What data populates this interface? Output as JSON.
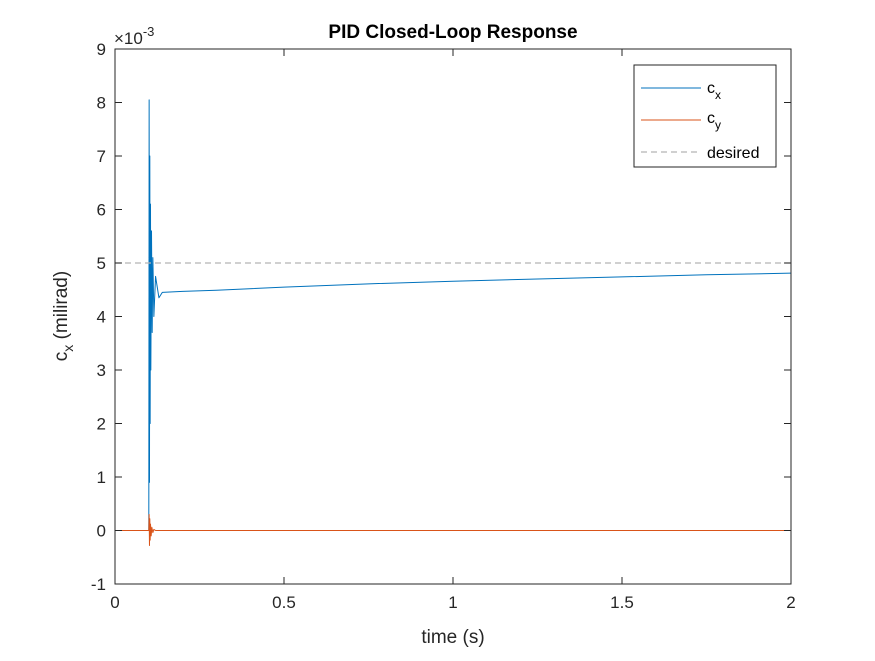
{
  "chart_data": {
    "type": "line",
    "title": "PID Closed-Loop Response",
    "xlabel": "time (s)",
    "ylabel": {
      "base": "c",
      "sub": "x",
      "rest": " (milirad)"
    },
    "xlim": [
      0,
      2
    ],
    "ylim": [
      -1,
      9
    ],
    "y_exponent": {
      "base": "×10",
      "exp": "-3"
    },
    "xticks": [
      0,
      0.5,
      1,
      1.5,
      2
    ],
    "xtick_labels": [
      "0",
      "0.5",
      "1",
      "1.5",
      "2"
    ],
    "yticks": [
      -1,
      0,
      1,
      2,
      3,
      4,
      5,
      6,
      7,
      8,
      9
    ],
    "ytick_labels": [
      "-1",
      "0",
      "1",
      "2",
      "3",
      "4",
      "5",
      "6",
      "7",
      "8",
      "9"
    ],
    "grid": false,
    "legend_position": "top-right",
    "series": [
      {
        "name": "c_x",
        "legend": {
          "base": "c",
          "sub": "x"
        },
        "color": "#0072BD",
        "style": "solid",
        "x": [
          0,
          0.1,
          0.1,
          0.101,
          0.102,
          0.103,
          0.104,
          0.105,
          0.106,
          0.108,
          0.11,
          0.112,
          0.115,
          0.12,
          0.13,
          0.14,
          0.2,
          0.3,
          0.5,
          0.75,
          1.0,
          1.25,
          1.5,
          1.75,
          2.0
        ],
        "y": [
          0,
          0,
          0,
          8.05,
          0.9,
          7.0,
          2.0,
          6.1,
          3.0,
          5.6,
          3.7,
          5.1,
          4.0,
          4.75,
          4.35,
          4.45,
          4.47,
          4.49,
          4.55,
          4.61,
          4.66,
          4.7,
          4.74,
          4.78,
          4.81
        ]
      },
      {
        "name": "c_y",
        "legend": {
          "base": "c",
          "sub": "y"
        },
        "color": "#D95319",
        "style": "solid",
        "x": [
          0,
          0.1,
          0.101,
          0.102,
          0.103,
          0.104,
          0.105,
          0.107,
          0.109,
          0.112,
          0.115,
          0.12,
          0.3,
          0.5,
          1.0,
          1.5,
          2.0
        ],
        "y": [
          0,
          0,
          0.3,
          -0.28,
          0.22,
          -0.18,
          0.12,
          -0.1,
          0.06,
          -0.04,
          0.02,
          0,
          0,
          0,
          0,
          0,
          0
        ]
      },
      {
        "name": "desired",
        "legend": {
          "base": "desired",
          "sub": ""
        },
        "color": "#B3B3B3",
        "style": "dashed",
        "x": [
          0,
          2
        ],
        "y": [
          5,
          5
        ]
      }
    ]
  }
}
